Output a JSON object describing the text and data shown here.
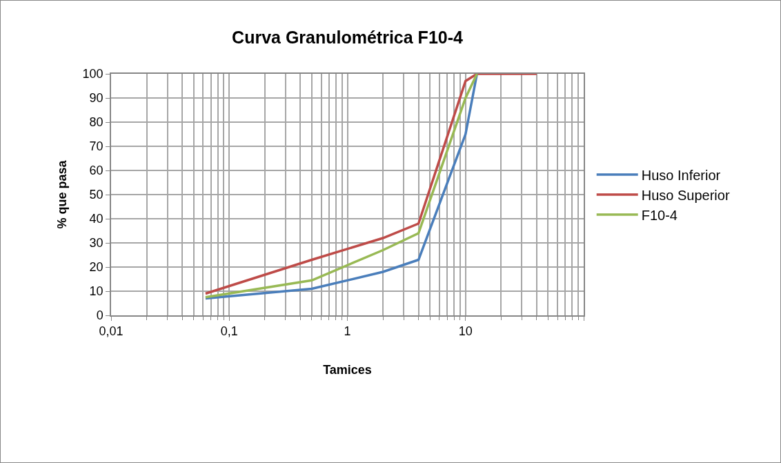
{
  "chart_data": {
    "type": "line",
    "title": "Curva Granulométrica F10-4",
    "xlabel": "Tamices",
    "ylabel": "% que pasa",
    "log": "x",
    "xlim": [
      0.01,
      100
    ],
    "xticks": [
      {
        "value": 0.01,
        "label": "0,01"
      },
      {
        "value": 0.1,
        "label": "0,1"
      },
      1,
      10,
      {
        "value": 100,
        "label": null
      }
    ],
    "ylim": [
      0,
      100
    ],
    "yticks": [
      0,
      10,
      20,
      30,
      40,
      50,
      60,
      70,
      80,
      90,
      100
    ],
    "grid": true,
    "legend": "right",
    "marker": "none",
    "line_style": "solid",
    "series": [
      {
        "name": "Huso Inferior",
        "color": "#4a7ebb",
        "x": [
          0.063,
          0.5,
          2,
          4,
          10,
          12.5
        ],
        "values": [
          7,
          11,
          18,
          23,
          75,
          100
        ]
      },
      {
        "name": "Huso Superior",
        "color": "#be4b48",
        "x": [
          0.063,
          0.5,
          2,
          4,
          10,
          12.5,
          40
        ],
        "values": [
          9,
          23,
          32,
          38,
          97,
          100,
          100
        ]
      },
      {
        "name": "F10-4",
        "color": "#98b954",
        "x": [
          0.063,
          0.5,
          2,
          4,
          10,
          12.5
        ],
        "values": [
          7.5,
          14.5,
          27,
          34,
          90,
          100
        ]
      }
    ]
  }
}
